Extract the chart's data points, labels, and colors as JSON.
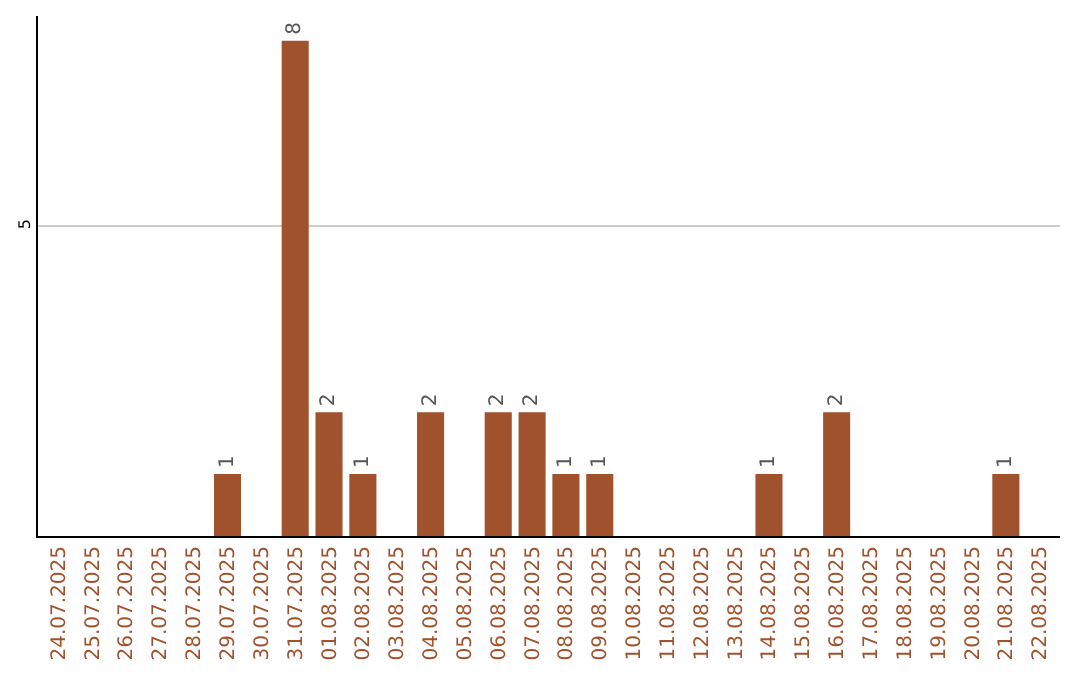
{
  "chart_data": {
    "type": "bar",
    "categories": [
      "24.07.2025",
      "25.07.2025",
      "26.07.2025",
      "27.07.2025",
      "28.07.2025",
      "29.07.2025",
      "30.07.2025",
      "31.07.2025",
      "01.08.2025",
      "02.08.2025",
      "03.08.2025",
      "04.08.2025",
      "05.08.2025",
      "06.08.2025",
      "07.08.2025",
      "08.08.2025",
      "09.08.2025",
      "10.08.2025",
      "11.08.2025",
      "12.08.2025",
      "13.08.2025",
      "14.08.2025",
      "15.08.2025",
      "16.08.2025",
      "17.08.2025",
      "18.08.2025",
      "19.08.2025",
      "20.08.2025",
      "21.08.2025",
      "22.08.2025"
    ],
    "values": [
      0,
      0,
      0,
      0,
      0,
      1,
      0,
      8,
      2,
      1,
      0,
      2,
      0,
      2,
      2,
      1,
      1,
      0,
      0,
      0,
      0,
      1,
      0,
      2,
      0,
      0,
      0,
      0,
      1,
      0
    ],
    "value_labels": [
      null,
      null,
      null,
      null,
      null,
      "1",
      null,
      "8",
      "2",
      "1",
      null,
      "2",
      null,
      "2",
      "2",
      "1",
      "1",
      null,
      null,
      null,
      null,
      "1",
      null,
      "2",
      null,
      null,
      null,
      null,
      "1",
      null
    ],
    "color": "#a0522d",
    "ylim": [
      0,
      8.4
    ],
    "yticks": [
      5
    ],
    "grid": "y",
    "legend": false
  }
}
